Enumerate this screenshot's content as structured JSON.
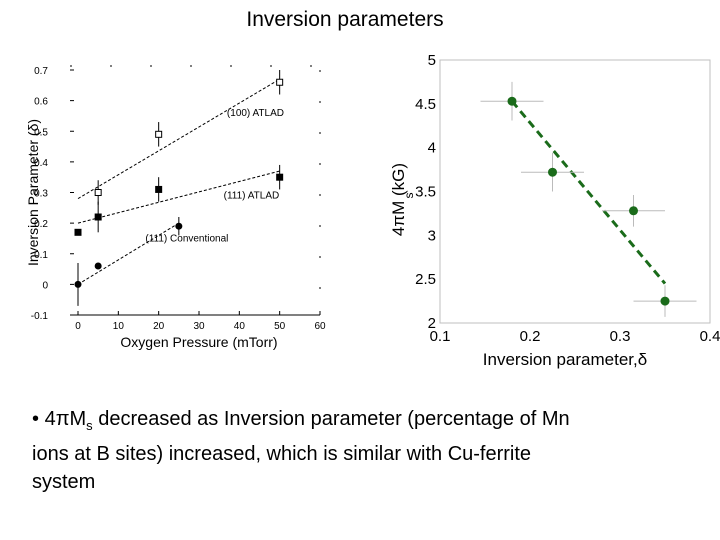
{
  "slide": {
    "title": "Inversion parameters",
    "bullet": {
      "marker": "•",
      "prefix": "4πM",
      "sub": "s",
      "rest_line1": " decreased as Inversion parameter (percentage of Mn",
      "line2": "ions at B sites) increased, which is similar with Cu-ferrite",
      "line3": "system"
    }
  },
  "chart_data": [
    {
      "type": "scatter",
      "xlabel": "Oxygen Pressure (mTorr)",
      "ylabel": "Inversion Parameter (δ)",
      "xlim": [
        0,
        60
      ],
      "ylim": [
        -0.1,
        0.7
      ],
      "xticks": [
        "0",
        "10",
        "20",
        "30",
        "40",
        "50",
        "60"
      ],
      "yticks": [
        "-0.1",
        "0",
        "0.1",
        "0.2",
        "0.3",
        "0.4",
        "0.5",
        "0.6",
        "0.7"
      ],
      "grid": false,
      "series": [
        {
          "name": "(100) ATLAD",
          "marker": "open-square",
          "x": [
            5,
            20,
            50
          ],
          "y": [
            0.3,
            0.49,
            0.66
          ],
          "yerr": [
            0.04,
            0.04,
            0.04
          ],
          "fit": [
            [
              0,
              0.28
            ],
            [
              50,
              0.67
            ]
          ],
          "label_at": [
            44,
            0.55
          ]
        },
        {
          "name": "(111) ATLAD",
          "marker": "filled-square",
          "x": [
            0,
            5,
            20,
            50
          ],
          "y": [
            0.17,
            0.22,
            0.31,
            0.35
          ],
          "yerr": [
            0.0,
            0.05,
            0.04,
            0.04
          ],
          "fit": [
            [
              0,
              0.2
            ],
            [
              50,
              0.37
            ]
          ],
          "label_at": [
            43,
            0.28
          ]
        },
        {
          "name": "(111) Conventional",
          "marker": "filled-circle",
          "x": [
            0,
            5,
            25
          ],
          "y": [
            0.0,
            0.06,
            0.19
          ],
          "yerr": [
            0.07,
            0.0,
            0.03
          ],
          "fit": [
            [
              0,
              0.0
            ],
            [
              25,
              0.2
            ]
          ],
          "label_at": [
            27,
            0.14
          ]
        }
      ]
    },
    {
      "type": "scatter",
      "xlabel": "Inversion parameter,δ",
      "ylabel": "4πM  (kG)",
      "ylabel_sub": "s",
      "xlim": [
        0.1,
        0.4
      ],
      "ylim": [
        2,
        5
      ],
      "xticks": [
        "0.1",
        "0.2",
        "0.3",
        "0.4"
      ],
      "yticks": [
        "2",
        "2.5",
        "3",
        "3.5",
        "4",
        "4.5",
        "5"
      ],
      "grid": false,
      "color": "#1a6b1a",
      "points": [
        {
          "x": 0.18,
          "y": 4.53,
          "xerr": 0.035,
          "yerr": 0.22
        },
        {
          "x": 0.225,
          "y": 3.72,
          "xerr": 0.035,
          "yerr": 0.22
        },
        {
          "x": 0.315,
          "y": 3.28,
          "xerr": 0.035,
          "yerr": 0.18
        },
        {
          "x": 0.35,
          "y": 2.25,
          "xerr": 0.035,
          "yerr": 0.18
        }
      ],
      "fit_line": [
        [
          0.18,
          4.53
        ],
        [
          0.35,
          2.45
        ]
      ]
    }
  ]
}
